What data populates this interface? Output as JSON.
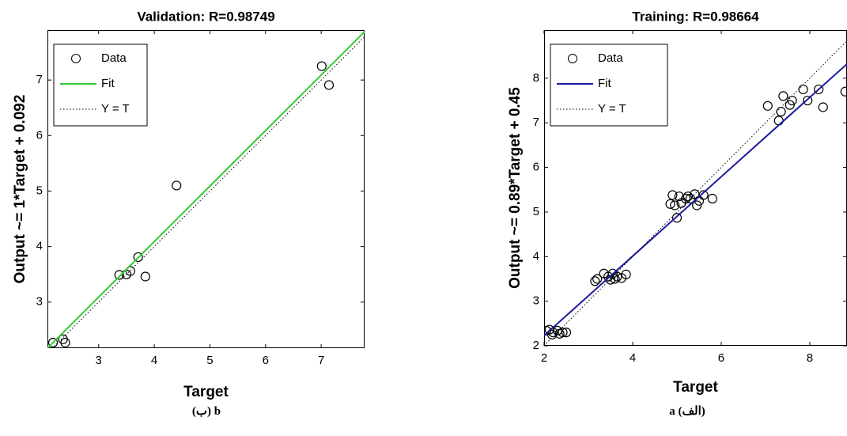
{
  "chart_data": [
    {
      "type": "scatter",
      "title": "Validation: R=0.98749",
      "xlabel": "Target",
      "ylabel": "Output ~= 1*Target + 0.092",
      "caption": "(ب) b",
      "legend": "upper left",
      "xlim": [
        2.08,
        7.78
      ],
      "ylim": [
        2.17,
        7.9
      ],
      "xticks": [
        3,
        4,
        5,
        6,
        7
      ],
      "yticks": [
        3,
        4,
        5,
        6,
        7
      ],
      "series": [
        {
          "name": "Data",
          "type": "scatter",
          "color": "#000000",
          "x": [
            2.18,
            2.36,
            2.4,
            3.37,
            3.5,
            3.57,
            3.71,
            3.84,
            4.4,
            7.01,
            7.14
          ],
          "values": [
            2.27,
            2.33,
            2.27,
            3.49,
            3.5,
            3.56,
            3.81,
            3.46,
            5.1,
            7.25,
            6.91
          ]
        },
        {
          "name": "Fit",
          "type": "line",
          "color": "#33cc33",
          "x": [
            2.08,
            7.78
          ],
          "values": [
            2.17,
            7.87
          ]
        },
        {
          "name": "Y = T",
          "type": "line",
          "style": "dotted",
          "color": "#000000",
          "x": [
            2.08,
            7.78
          ],
          "values": [
            2.08,
            7.78
          ]
        }
      ]
    },
    {
      "type": "scatter",
      "title": "Training: R=0.98664",
      "xlabel": "Target",
      "ylabel": "Output ~= 0.89*Target + 0.45",
      "caption": "a (الف)",
      "legend": "upper left",
      "xlim": [
        2,
        8.84
      ],
      "ylim": [
        2,
        9.08
      ],
      "xticks": [
        2,
        4,
        6,
        8
      ],
      "yticks": [
        2,
        3,
        4,
        5,
        6,
        7,
        8
      ],
      "series": [
        {
          "name": "Data",
          "type": "scatter",
          "color": "#000000",
          "x": [
            2.05,
            2.12,
            2.2,
            2.3,
            2.42,
            2.5,
            2.18,
            2.35,
            3.15,
            3.2,
            3.35,
            3.45,
            3.5,
            3.55,
            3.6,
            3.65,
            3.75,
            3.85,
            4.85,
            4.9,
            4.95,
            5.0,
            5.05,
            5.1,
            5.2,
            5.25,
            5.3,
            5.4,
            5.45,
            5.5,
            5.6,
            5.8,
            7.05,
            7.3,
            7.35,
            7.4,
            7.55,
            7.6,
            7.85,
            7.95,
            8.2,
            8.3,
            8.8
          ],
          "values": [
            2.34,
            2.36,
            2.3,
            2.34,
            2.3,
            2.3,
            2.25,
            2.27,
            3.45,
            3.5,
            3.62,
            3.55,
            3.48,
            3.62,
            3.5,
            3.55,
            3.52,
            3.6,
            5.18,
            5.38,
            5.15,
            4.87,
            5.35,
            5.2,
            5.3,
            5.35,
            5.3,
            5.4,
            5.15,
            5.25,
            5.38,
            5.3,
            7.38,
            7.05,
            7.25,
            7.6,
            7.4,
            7.5,
            7.75,
            7.5,
            7.75,
            7.35,
            7.7
          ]
        },
        {
          "name": "Fit",
          "type": "line",
          "color": "#1a1aa0",
          "x": [
            2,
            8.84
          ],
          "values": [
            2.23,
            8.32
          ]
        },
        {
          "name": "Y = T",
          "type": "line",
          "style": "dotted",
          "color": "#000000",
          "x": [
            2,
            8.84
          ],
          "values": [
            2,
            8.84
          ]
        }
      ]
    }
  ]
}
